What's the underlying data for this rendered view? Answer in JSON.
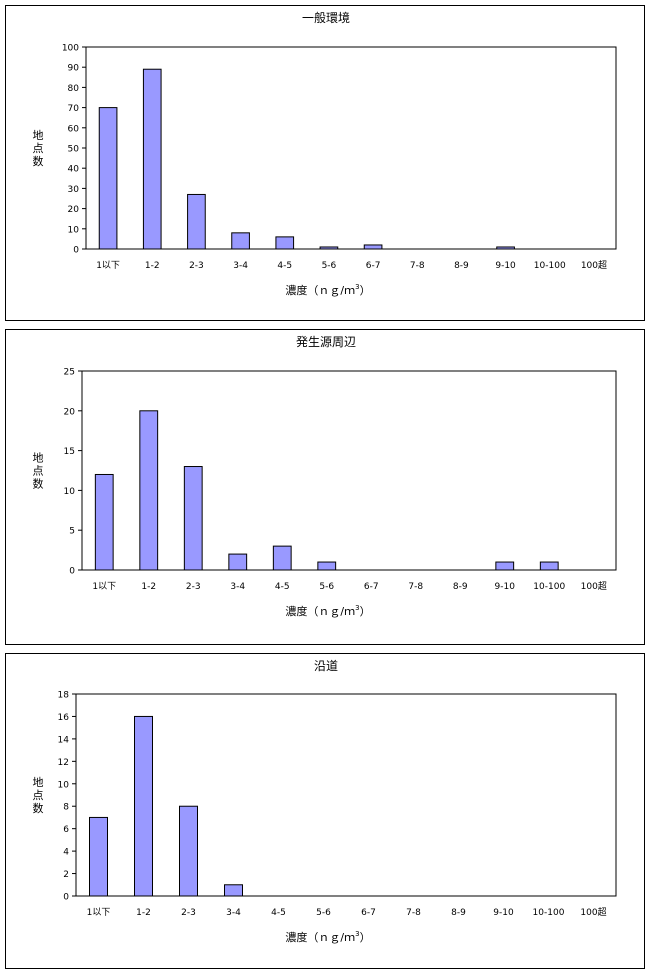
{
  "chart_data": [
    {
      "type": "bar",
      "title": "一般環境",
      "xlabel": "濃度（ｎｇ/ｍ",
      "xlabel_sup": "3",
      "xlabel_end": "）",
      "ylabel": "地点数",
      "categories": [
        "1以下",
        "1-2",
        "2-3",
        "3-4",
        "4-5",
        "5-6",
        "6-7",
        "7-8",
        "8-9",
        "9-10",
        "10-100",
        "100超"
      ],
      "values": [
        70,
        89,
        27,
        8,
        6,
        1,
        2,
        0,
        0,
        1,
        0,
        0
      ],
      "ylim": [
        0,
        100
      ],
      "yticks": [
        0,
        10,
        20,
        30,
        40,
        50,
        60,
        70,
        80,
        90,
        100
      ],
      "bar_color": "#9999ff",
      "grid": false,
      "legend": "none"
    },
    {
      "type": "bar",
      "title": "発生源周辺",
      "xlabel": "濃度（ｎｇ/ｍ",
      "xlabel_sup": "3",
      "xlabel_end": "）",
      "ylabel": "地点数",
      "categories": [
        "1以下",
        "1-2",
        "2-3",
        "3-4",
        "4-5",
        "5-6",
        "6-7",
        "7-8",
        "8-9",
        "9-10",
        "10-100",
        "100超"
      ],
      "values": [
        12,
        20,
        13,
        2,
        3,
        1,
        0,
        0,
        0,
        1,
        1,
        0
      ],
      "ylim": [
        0,
        25
      ],
      "yticks": [
        0,
        5,
        10,
        15,
        20,
        25
      ],
      "bar_color": "#9999ff",
      "grid": false,
      "legend": "none"
    },
    {
      "type": "bar",
      "title": "沿道",
      "xlabel": "濃度（ｎｇ/ｍ",
      "xlabel_sup": "3",
      "xlabel_end": "）",
      "ylabel": "地点数",
      "categories": [
        "1以下",
        "1-2",
        "2-3",
        "3-4",
        "4-5",
        "5-6",
        "6-7",
        "7-8",
        "8-9",
        "9-10",
        "10-100",
        "100超"
      ],
      "values": [
        7,
        16,
        8,
        1,
        0,
        0,
        0,
        0,
        0,
        0,
        0,
        0
      ],
      "ylim": [
        0,
        18
      ],
      "yticks": [
        0,
        2,
        4,
        6,
        8,
        10,
        12,
        14,
        16,
        18
      ],
      "bar_color": "#9999ff",
      "grid": false,
      "legend": "none"
    }
  ]
}
